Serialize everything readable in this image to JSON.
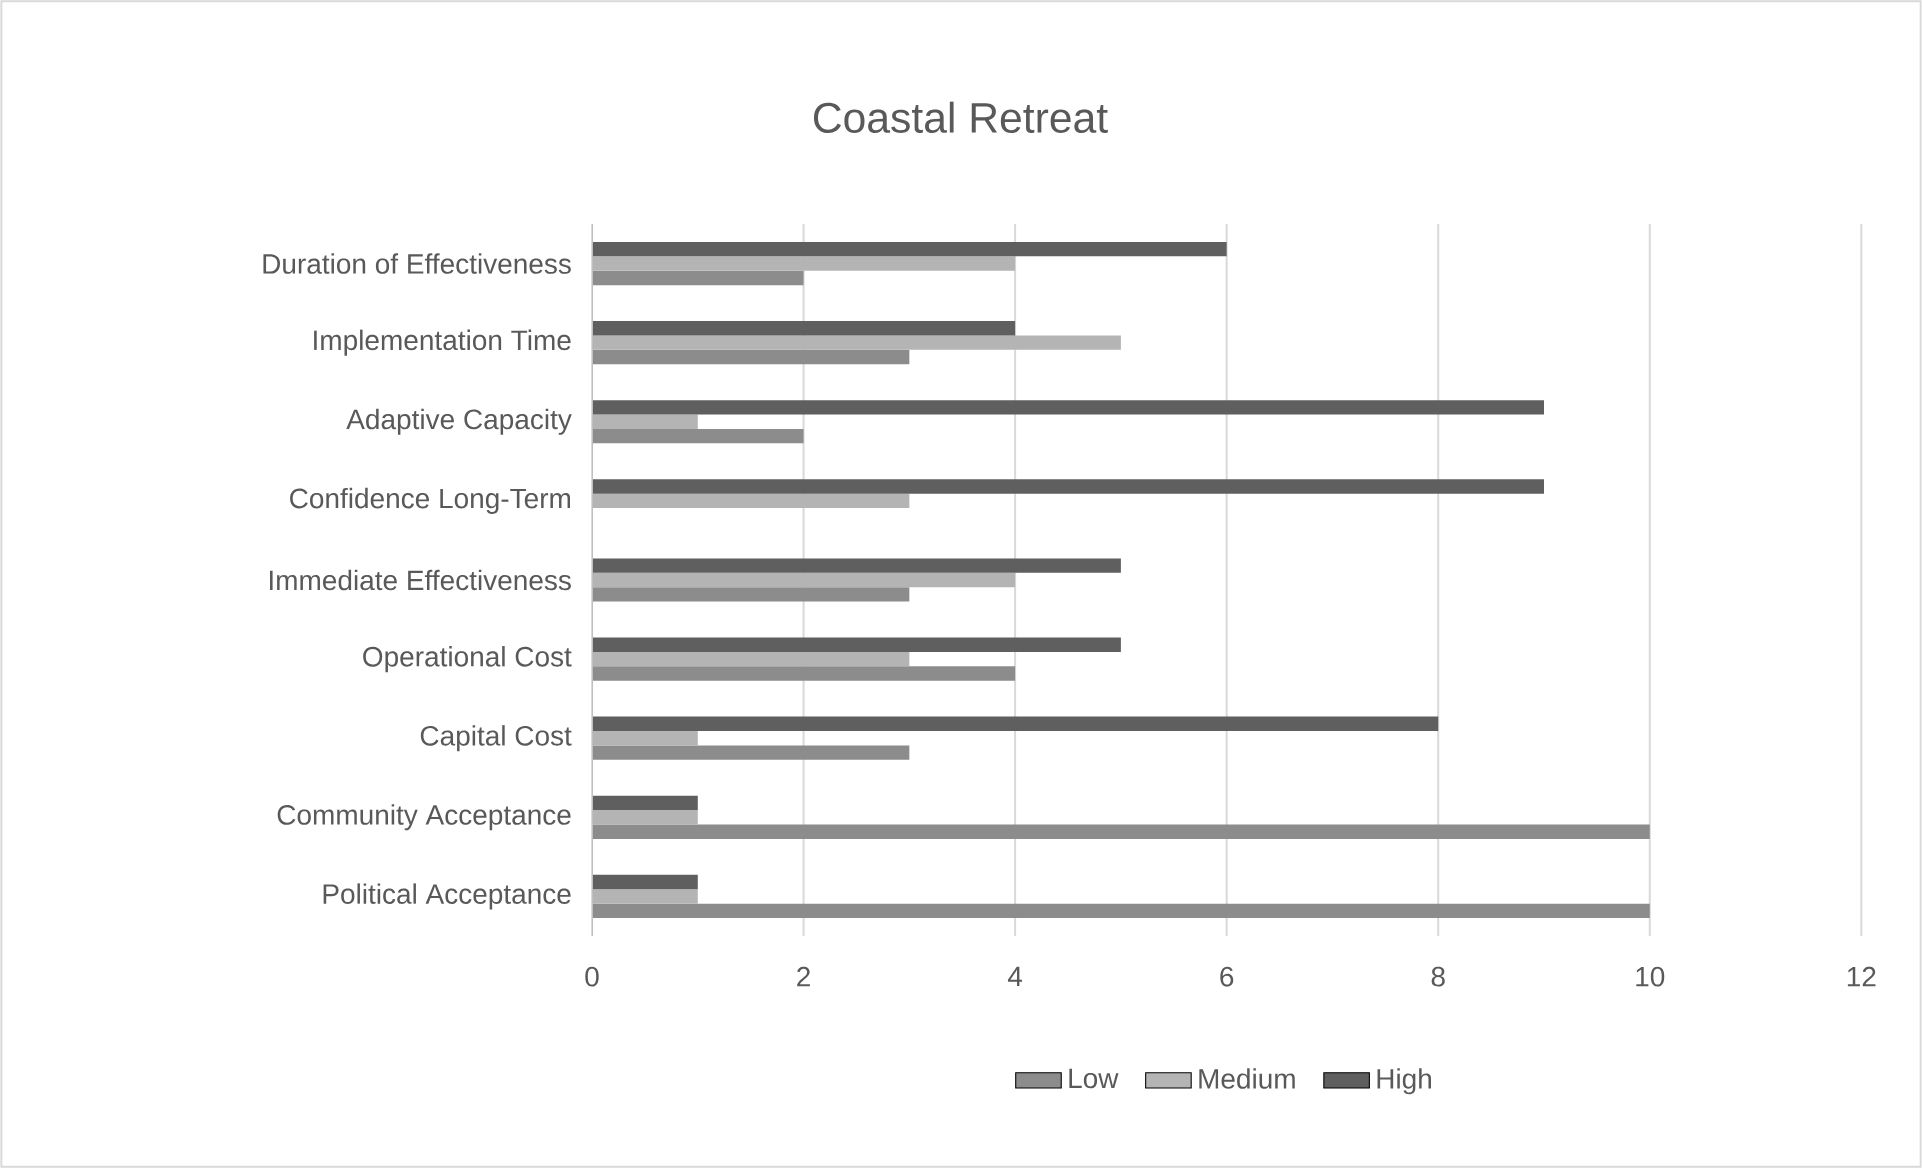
{
  "chart_data": {
    "type": "bar",
    "orientation": "horizontal",
    "title": "Coastal Retreat",
    "categories": [
      "Duration of Effectiveness",
      "Implementation Time",
      "Adaptive Capacity",
      "Confidence Long-Term",
      "Immediate Effectiveness",
      "Operational Cost",
      "Capital Cost",
      "Community Acceptance",
      "Political Acceptance"
    ],
    "series": [
      {
        "name": "Low",
        "color": "#8c8c8c",
        "values": [
          2,
          3,
          2,
          0,
          3,
          4,
          3,
          10,
          10
        ]
      },
      {
        "name": "Medium",
        "color": "#b4b4b4",
        "values": [
          4,
          5,
          1,
          3,
          4,
          3,
          1,
          1,
          1
        ]
      },
      {
        "name": "High",
        "color": "#5f5f5f",
        "values": [
          6,
          4,
          9,
          9,
          5,
          5,
          8,
          1,
          1
        ]
      }
    ],
    "xlim": [
      0,
      12
    ],
    "xticks": [
      0,
      2,
      4,
      6,
      8,
      10,
      12
    ],
    "grid": "x",
    "legend": "bottom"
  }
}
